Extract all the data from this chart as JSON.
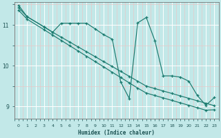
{
  "xlabel": "Humidex (Indice chaleur)",
  "ylabel": "",
  "bg_color": "#c2e8e8",
  "grid_color": "#ffffff",
  "grid_minor_color": "#e8c8c8",
  "line_color": "#1a7a6e",
  "xlim": [
    -0.5,
    23.5
  ],
  "ylim": [
    8.7,
    11.55
  ],
  "yticks": [
    9,
    10,
    11
  ],
  "xticks": [
    0,
    1,
    2,
    3,
    4,
    5,
    6,
    7,
    8,
    9,
    10,
    11,
    12,
    13,
    14,
    15,
    16,
    17,
    18,
    19,
    20,
    21,
    22,
    23
  ],
  "line1_x": [
    0,
    1,
    3,
    4,
    5,
    6,
    7,
    8,
    9,
    10,
    11,
    12,
    13,
    14,
    15,
    16,
    17,
    18,
    19,
    20,
    21,
    22,
    23
  ],
  "line1_y": [
    11.42,
    11.2,
    10.95,
    10.82,
    10.7,
    10.58,
    10.46,
    10.34,
    10.22,
    10.1,
    9.98,
    9.86,
    9.74,
    9.62,
    9.5,
    9.44,
    9.38,
    9.32,
    9.26,
    9.2,
    9.14,
    9.08,
    9.02
  ],
  "line2_x": [
    0,
    1,
    3,
    4,
    5,
    6,
    7,
    8,
    9,
    10,
    11,
    12,
    13,
    14,
    15,
    16,
    17,
    18,
    19,
    20,
    21,
    22,
    23
  ],
  "line2_y": [
    11.36,
    11.14,
    10.88,
    10.75,
    10.62,
    10.49,
    10.36,
    10.23,
    10.1,
    9.97,
    9.84,
    9.71,
    9.58,
    9.45,
    9.33,
    9.27,
    9.21,
    9.15,
    9.09,
    9.03,
    8.97,
    8.91,
    8.92
  ],
  "line3_x": [
    0,
    1,
    3,
    4,
    5,
    6,
    7,
    8,
    9,
    10,
    11,
    12,
    13,
    14,
    15,
    16,
    17,
    18,
    19,
    20,
    21,
    22,
    23
  ],
  "line3_y": [
    11.48,
    11.2,
    10.95,
    10.82,
    11.04,
    11.04,
    11.04,
    11.04,
    10.9,
    10.76,
    10.65,
    9.6,
    9.2,
    11.05,
    11.18,
    10.62,
    9.75,
    9.75,
    9.72,
    9.62,
    9.27,
    9.03,
    9.22
  ]
}
